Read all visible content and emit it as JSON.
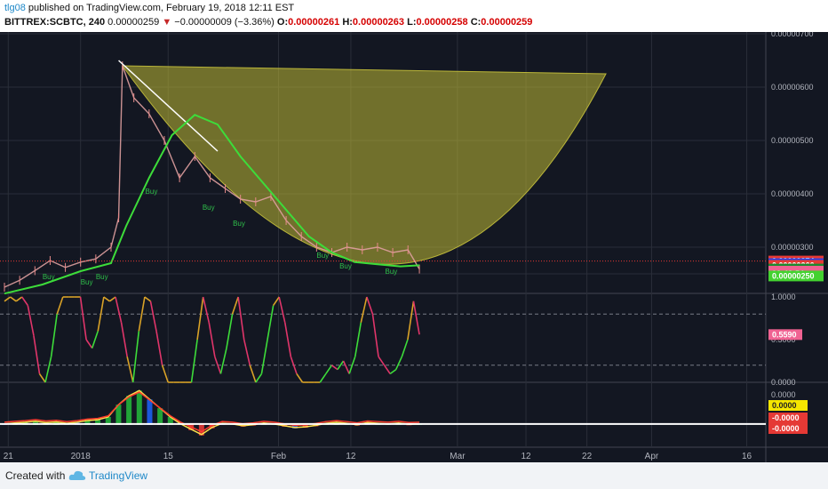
{
  "header": {
    "user": "tlg08",
    "published": " published on TradingView.com, February 19, 2018 12:11 EST",
    "symbol": "BITTREX:SCBTC, 240",
    "price": "0.00000259",
    "arrow": "▼",
    "change": "−0.00000009 (−3.36%)",
    "o_label": "O:",
    "o_value": "0.00000261",
    "h_label": "H:",
    "h_value": "0.00000263",
    "l_label": "L:",
    "l_value": "0.00000258",
    "c_label": "C:",
    "c_value": "0.00000259"
  },
  "footer": {
    "created": "Created with",
    "brand": "TradingView",
    "logo_icon": "tradingview-cloud-icon"
  },
  "chart_data": [
    {
      "type": "candlestick",
      "panel": "price",
      "x_tick_labels": [
        "21",
        "2018",
        "15",
        "Feb",
        "12",
        "Mar",
        "12",
        "22",
        "Apr",
        "16"
      ],
      "y_tick_labels": [
        "0.00000700",
        "0.00000600",
        "0.00000500",
        "0.00000400",
        "0.00000300",
        "0.00000250"
      ],
      "ylim": [
        2.1e-06,
        7e-06
      ],
      "close_series": [
        {
          "x": 0,
          "y": 2.25e-06
        },
        {
          "x": 0.02,
          "y": 2.38e-06
        },
        {
          "x": 0.04,
          "y": 2.56e-06
        },
        {
          "x": 0.06,
          "y": 2.75e-06
        },
        {
          "x": 0.08,
          "y": 2.62e-06
        },
        {
          "x": 0.1,
          "y": 2.72e-06
        },
        {
          "x": 0.12,
          "y": 2.78e-06
        },
        {
          "x": 0.14,
          "y": 3e-06
        },
        {
          "x": 0.15,
          "y": 3.55e-06
        },
        {
          "x": 0.155,
          "y": 6.4e-06
        },
        {
          "x": 0.17,
          "y": 5.8e-06
        },
        {
          "x": 0.19,
          "y": 5.5e-06
        },
        {
          "x": 0.21,
          "y": 5e-06
        },
        {
          "x": 0.23,
          "y": 4.3e-06
        },
        {
          "x": 0.25,
          "y": 4.7e-06
        },
        {
          "x": 0.27,
          "y": 4.3e-06
        },
        {
          "x": 0.29,
          "y": 4.1e-06
        },
        {
          "x": 0.31,
          "y": 3.9e-06
        },
        {
          "x": 0.33,
          "y": 3.85e-06
        },
        {
          "x": 0.35,
          "y": 3.95e-06
        },
        {
          "x": 0.37,
          "y": 3.5e-06
        },
        {
          "x": 0.39,
          "y": 3.2e-06
        },
        {
          "x": 0.41,
          "y": 3e-06
        },
        {
          "x": 0.43,
          "y": 2.9e-06
        },
        {
          "x": 0.45,
          "y": 3e-06
        },
        {
          "x": 0.47,
          "y": 2.95e-06
        },
        {
          "x": 0.49,
          "y": 3e-06
        },
        {
          "x": 0.51,
          "y": 2.9e-06
        },
        {
          "x": 0.53,
          "y": 2.95e-06
        },
        {
          "x": 0.545,
          "y": 2.59e-06
        }
      ],
      "ma_series": [
        {
          "x": 0,
          "y": 2.13e-06
        },
        {
          "x": 0.05,
          "y": 2.3e-06
        },
        {
          "x": 0.1,
          "y": 2.55e-06
        },
        {
          "x": 0.14,
          "y": 2.7e-06
        },
        {
          "x": 0.16,
          "y": 3.4e-06
        },
        {
          "x": 0.19,
          "y": 4.3e-06
        },
        {
          "x": 0.22,
          "y": 5.1e-06
        },
        {
          "x": 0.25,
          "y": 5.48e-06
        },
        {
          "x": 0.28,
          "y": 5.3e-06
        },
        {
          "x": 0.31,
          "y": 4.7e-06
        },
        {
          "x": 0.34,
          "y": 4.2e-06
        },
        {
          "x": 0.37,
          "y": 3.7e-06
        },
        {
          "x": 0.4,
          "y": 3.2e-06
        },
        {
          "x": 0.43,
          "y": 2.9e-06
        },
        {
          "x": 0.46,
          "y": 2.72e-06
        },
        {
          "x": 0.49,
          "y": 2.68e-06
        },
        {
          "x": 0.52,
          "y": 2.64e-06
        },
        {
          "x": 0.545,
          "y": 2.66e-06
        }
      ],
      "cup_shape": {
        "left": {
          "x": 0.155,
          "y": 6.4e-06
        },
        "right": {
          "x": 0.79,
          "y": 6.25e-06
        },
        "bottom": {
          "x": 0.5,
          "y": 2.68e-06
        }
      },
      "trend_line": [
        {
          "x": 0.15,
          "y": 6.5e-06
        },
        {
          "x": 0.28,
          "y": 4.8e-06
        }
      ],
      "signal_labels": [
        "Buy",
        "Buy",
        "Buy",
        "Buy",
        "Buy",
        "Buy",
        "Buy",
        "Buy",
        "Buy"
      ],
      "price_badges": [
        {
          "label": "0.00000274",
          "color": "#e53935"
        },
        {
          "label": "0.00000269",
          "color": "#1e3ff0"
        },
        {
          "label": "0.00000266",
          "color": "#e53935"
        },
        {
          "label": "0.00000259",
          "color": "#1b8a2e"
        },
        {
          "label": "0.00000259",
          "color": "#f06292"
        },
        {
          "label": "02:48:54",
          "color": "#f06292"
        },
        {
          "label": "0.00000250",
          "color": "#43d230"
        }
      ]
    },
    {
      "type": "line",
      "panel": "oscillator",
      "ylim": [
        0,
        1
      ],
      "y_tick_labels": [
        "1.0000",
        "0.5000",
        "0.0000"
      ],
      "reference_lines": [
        0.8,
        0.2
      ],
      "current_badge": "0.5590",
      "values": [
        0.95,
        1,
        0.95,
        1,
        0.9,
        0.55,
        0.1,
        0,
        0.3,
        0.8,
        1,
        1,
        1,
        1,
        0.5,
        0.4,
        0.6,
        1,
        0.95,
        1,
        0.7,
        0.3,
        0,
        0.6,
        1,
        0.95,
        0.6,
        0.2,
        0,
        0,
        0,
        0,
        0,
        0.5,
        1,
        0.7,
        0.3,
        0.1,
        0.4,
        0.8,
        1,
        0.5,
        0.2,
        0,
        0.1,
        0.5,
        0.9,
        1,
        0.7,
        0.3,
        0.1,
        0,
        0,
        0,
        0,
        0.1,
        0.2,
        0.15,
        0.25,
        0.1,
        0.3,
        0.7,
        1,
        0.8,
        0.3,
        0.2,
        0.1,
        0.15,
        0.3,
        0.5,
        0.95,
        0.56
      ]
    },
    {
      "type": "line",
      "panel": "macd",
      "y_tick_labels": [
        "0.0000",
        "0.0000",
        "-0.0000",
        "-0.0000"
      ],
      "current_badges": [
        {
          "label": "0.0000",
          "color": "#f5e600"
        },
        {
          "label": "-0.0000",
          "color": "#e53935"
        },
        {
          "label": "-0.0000",
          "color": "#e53935"
        }
      ],
      "values": [
        0,
        0.03,
        0.05,
        0.08,
        0.04,
        0.06,
        0.02,
        0.05,
        0.1,
        0.12,
        0.2,
        0.55,
        0.8,
        0.95,
        0.7,
        0.45,
        0.2,
        0,
        -0.15,
        -0.3,
        -0.1,
        0.02,
        0,
        -0.05,
        -0.02,
        0.03,
        0,
        -0.05,
        -0.1,
        -0.08,
        -0.04,
        0.02,
        0.05,
        0.02,
        -0.02,
        0.04,
        0.02,
        0,
        0.03,
        -0.01,
        0
      ]
    }
  ]
}
